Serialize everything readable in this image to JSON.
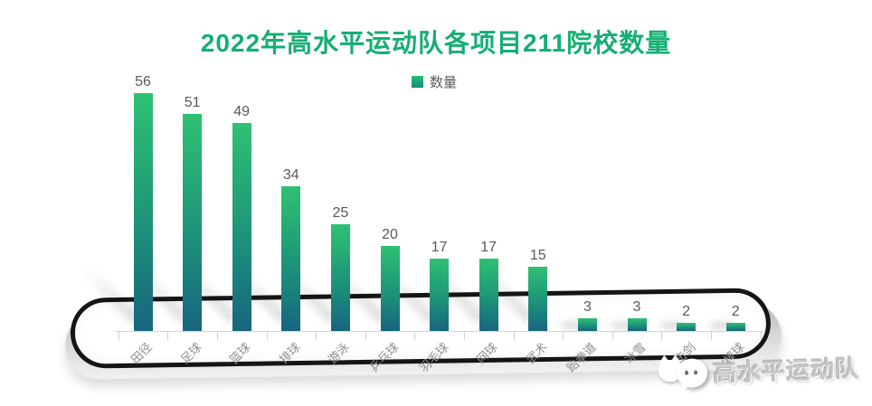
{
  "title": "2022年高水平运动队各项目211院校数量",
  "legend": {
    "label": "数量"
  },
  "watermark": {
    "text": "高水平运动队",
    "icons": [
      "cat-silhouette-icon",
      "wechat-bubble-icon"
    ]
  },
  "colors": {
    "title": "#16ae74",
    "bar_gradient_top": "#2ec173",
    "bar_gradient_bottom": "#17657f",
    "value_label": "#595959",
    "axis_label": "#8f8f8f",
    "axis_line": "#d4d4d4",
    "platform_outline": "#151515"
  },
  "chart_data": {
    "type": "bar",
    "title": "2022年高水平运动队各项目211院校数量",
    "series_name": "数量",
    "categories": [
      "田径",
      "足球",
      "篮球",
      "排球",
      "游泳",
      "乒乓球",
      "羽毛球",
      "网球",
      "武术",
      "跆拳道",
      "冰雪",
      "击剑",
      "棒球"
    ],
    "values": [
      56,
      51,
      49,
      34,
      25,
      20,
      17,
      17,
      15,
      3,
      3,
      2,
      2
    ],
    "xlabel": "",
    "ylabel": "",
    "ylim": [
      0,
      60
    ],
    "grid": false,
    "legend_position": "top-center",
    "data_labels": true,
    "x_label_rotation_deg": 45,
    "note": "last category partially hidden behind watermark"
  }
}
